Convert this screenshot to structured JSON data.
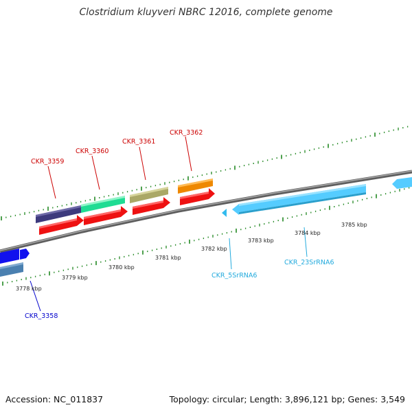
{
  "title": "Clostridium kluyveri NBRC 12016, complete genome",
  "footer": {
    "accession_label": "Accession:",
    "accession_value": "NC_011837",
    "summary": "Topology: circular; Length: 3,896,121 bp; Genes: 3,549"
  },
  "scale_labels": [
    "3778 kbp",
    "3779 kbp",
    "3780 kbp",
    "3781 kbp",
    "3782 kbp",
    "3783 kbp",
    "3784 kbp",
    "3785 kbp"
  ],
  "gene_labels": [
    {
      "name": "CKR_3358",
      "color": "#0000cc"
    },
    {
      "name": "CKR_3359",
      "color": "#cc0000"
    },
    {
      "name": "CKR_3360",
      "color": "#cc0000"
    },
    {
      "name": "CKR_3361",
      "color": "#cc0000"
    },
    {
      "name": "CKR_3362",
      "color": "#cc0000"
    },
    {
      "name": "CKR_5SrRNA6",
      "color": "#22aadd"
    },
    {
      "name": "CKR_23SrRNA6",
      "color": "#22aadd"
    }
  ],
  "colors": {
    "backbone": "#8a8a8a",
    "ticks": "#228822",
    "cds": "#ee1111",
    "rrna": "#55ccff"
  }
}
